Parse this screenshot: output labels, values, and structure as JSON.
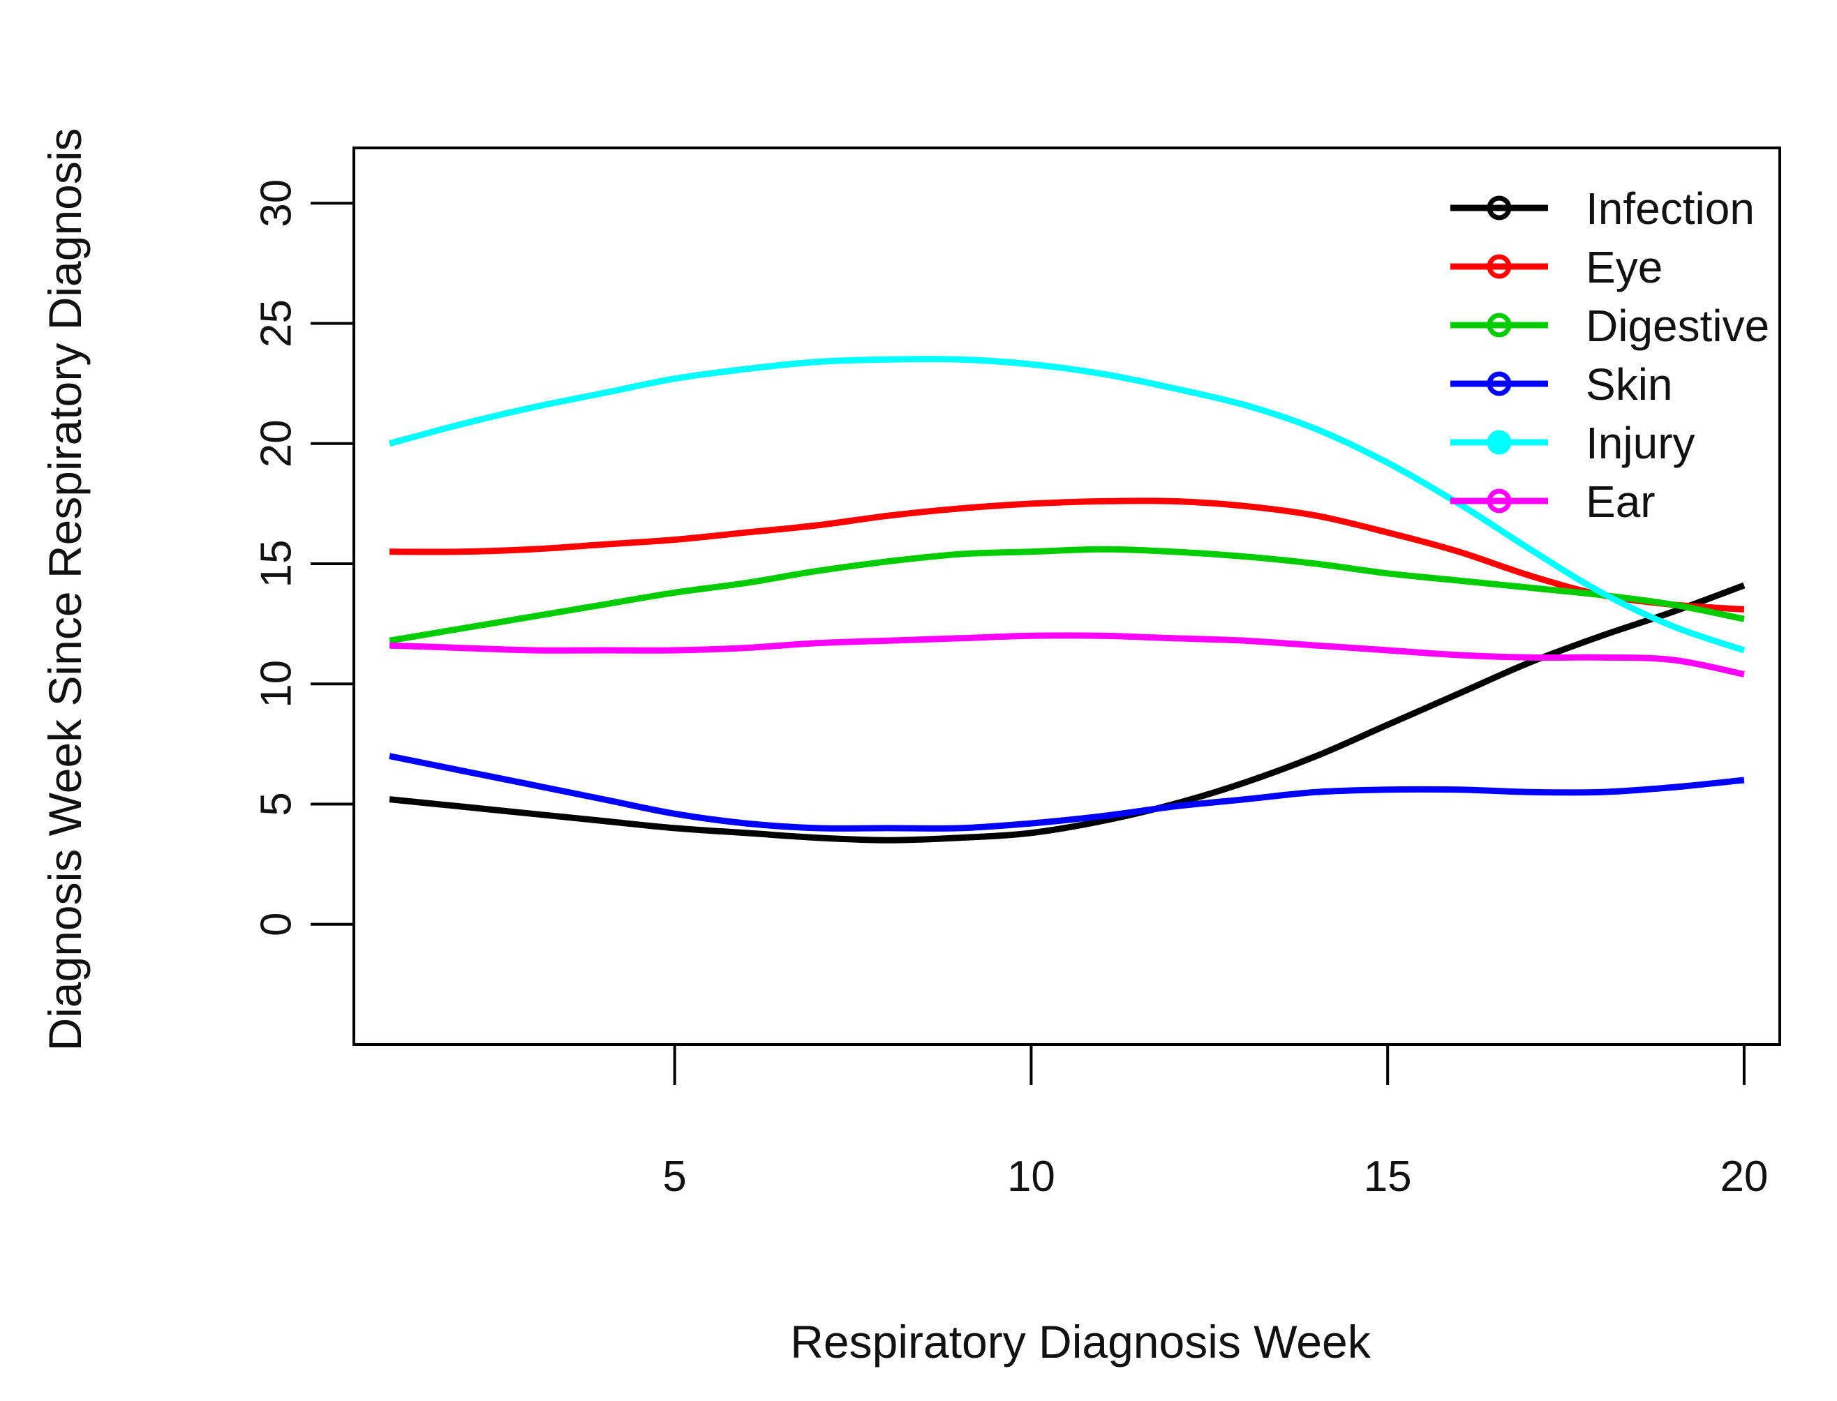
{
  "chart_data": {
    "type": "line",
    "title": "",
    "xlabel": "Respiratory Diagnosis Week",
    "ylabel": "Diagnosis Week Since Respiratory Diagnosis",
    "xlim": [
      0.5,
      20.5
    ],
    "ylim": [
      -5,
      32.3
    ],
    "x_ticks": [
      "5",
      "10",
      "15",
      "20"
    ],
    "y_ticks": [
      "0",
      "5",
      "10",
      "15",
      "20",
      "25",
      "30"
    ],
    "legend_position": "top-right",
    "grid": false,
    "x": [
      1,
      2,
      3,
      4,
      5,
      6,
      7,
      8,
      9,
      10,
      11,
      12,
      13,
      14,
      15,
      16,
      17,
      18,
      19,
      20
    ],
    "series": [
      {
        "name": "Infection",
        "color": "#000000",
        "values": [
          5.2,
          4.9,
          4.6,
          4.3,
          4.0,
          3.8,
          3.6,
          3.5,
          3.6,
          3.8,
          4.3,
          5.0,
          5.9,
          7.0,
          8.3,
          9.6,
          10.9,
          12.0,
          13.0,
          14.1
        ]
      },
      {
        "name": "Eye",
        "color": "#ff0000",
        "values": [
          15.5,
          15.5,
          15.6,
          15.8,
          16.0,
          16.3,
          16.6,
          17.0,
          17.3,
          17.5,
          17.6,
          17.6,
          17.4,
          17.0,
          16.3,
          15.5,
          14.5,
          13.7,
          13.3,
          13.1
        ]
      },
      {
        "name": "Digestive",
        "color": "#00cc00",
        "values": [
          11.8,
          12.3,
          12.8,
          13.3,
          13.8,
          14.2,
          14.7,
          15.1,
          15.4,
          15.5,
          15.6,
          15.5,
          15.3,
          15.0,
          14.6,
          14.3,
          14.0,
          13.7,
          13.3,
          12.7
        ]
      },
      {
        "name": "Skin",
        "color": "#0000ff",
        "values": [
          7.0,
          6.4,
          5.8,
          5.2,
          4.6,
          4.2,
          4.0,
          4.0,
          4.0,
          4.2,
          4.5,
          4.9,
          5.2,
          5.5,
          5.6,
          5.6,
          5.5,
          5.5,
          5.7,
          6.0
        ]
      },
      {
        "name": "Injury",
        "color": "#00ffff",
        "values": [
          20.0,
          20.8,
          21.5,
          22.1,
          22.7,
          23.1,
          23.4,
          23.5,
          23.5,
          23.3,
          22.9,
          22.3,
          21.6,
          20.6,
          19.2,
          17.5,
          15.6,
          13.8,
          12.4,
          11.4
        ]
      },
      {
        "name": "Ear",
        "color": "#ff00ff",
        "values": [
          11.6,
          11.5,
          11.4,
          11.4,
          11.4,
          11.5,
          11.7,
          11.8,
          11.9,
          12.0,
          12.0,
          11.9,
          11.8,
          11.6,
          11.4,
          11.2,
          11.1,
          11.1,
          11.0,
          10.4
        ]
      }
    ]
  }
}
